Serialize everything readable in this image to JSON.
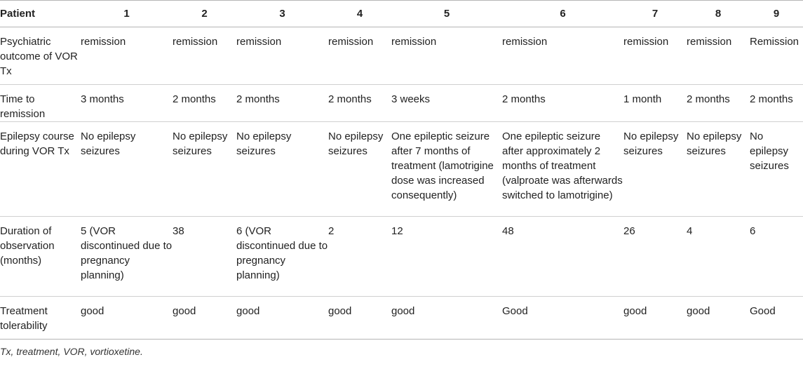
{
  "table": {
    "header_label": "Patient",
    "patients": [
      "1",
      "2",
      "3",
      "4",
      "5",
      "6",
      "7",
      "8",
      "9"
    ],
    "rows": [
      {
        "label": "Psychiatric outcome of VOR Tx",
        "cells": [
          "remission",
          "remission",
          "remission",
          "remission",
          "remission",
          "remission",
          "remission",
          "remission",
          "Remission"
        ]
      },
      {
        "label": "Time to remission",
        "cells": [
          "3 months",
          "2 months",
          "2 months",
          "2 months",
          "3 weeks",
          "2 months",
          "1 month",
          "2 months",
          "2 months"
        ]
      },
      {
        "label": "Epilepsy course during VOR Tx",
        "cells": [
          "No epilepsy seizures",
          "No epilepsy seizures",
          "No epilepsy seizures",
          "No epilepsy seizures",
          "One epileptic seizure after 7 months of treatment (lamotrigine dose was increased consequently)",
          "One epileptic seizure after approximately 2 months of treatment (valproate was afterwards switched to lamotrigine)",
          "No epilepsy seizures",
          "No epilepsy seizures",
          "No epilepsy seizures"
        ]
      },
      {
        "label": "Duration of observation (months)",
        "cells": [
          "5 (VOR discontinued due to pregnancy planning)",
          "38",
          "6 (VOR discontinued due to pregnancy planning)",
          "2",
          "12",
          "48",
          "26",
          "4",
          "6"
        ]
      },
      {
        "label": "Treatment tolerability",
        "cells": [
          "good",
          "good",
          "good",
          "good",
          "good",
          "Good",
          "good",
          "good",
          "Good"
        ]
      }
    ]
  },
  "footnote": "Tx, treatment, VOR, vortioxetine."
}
